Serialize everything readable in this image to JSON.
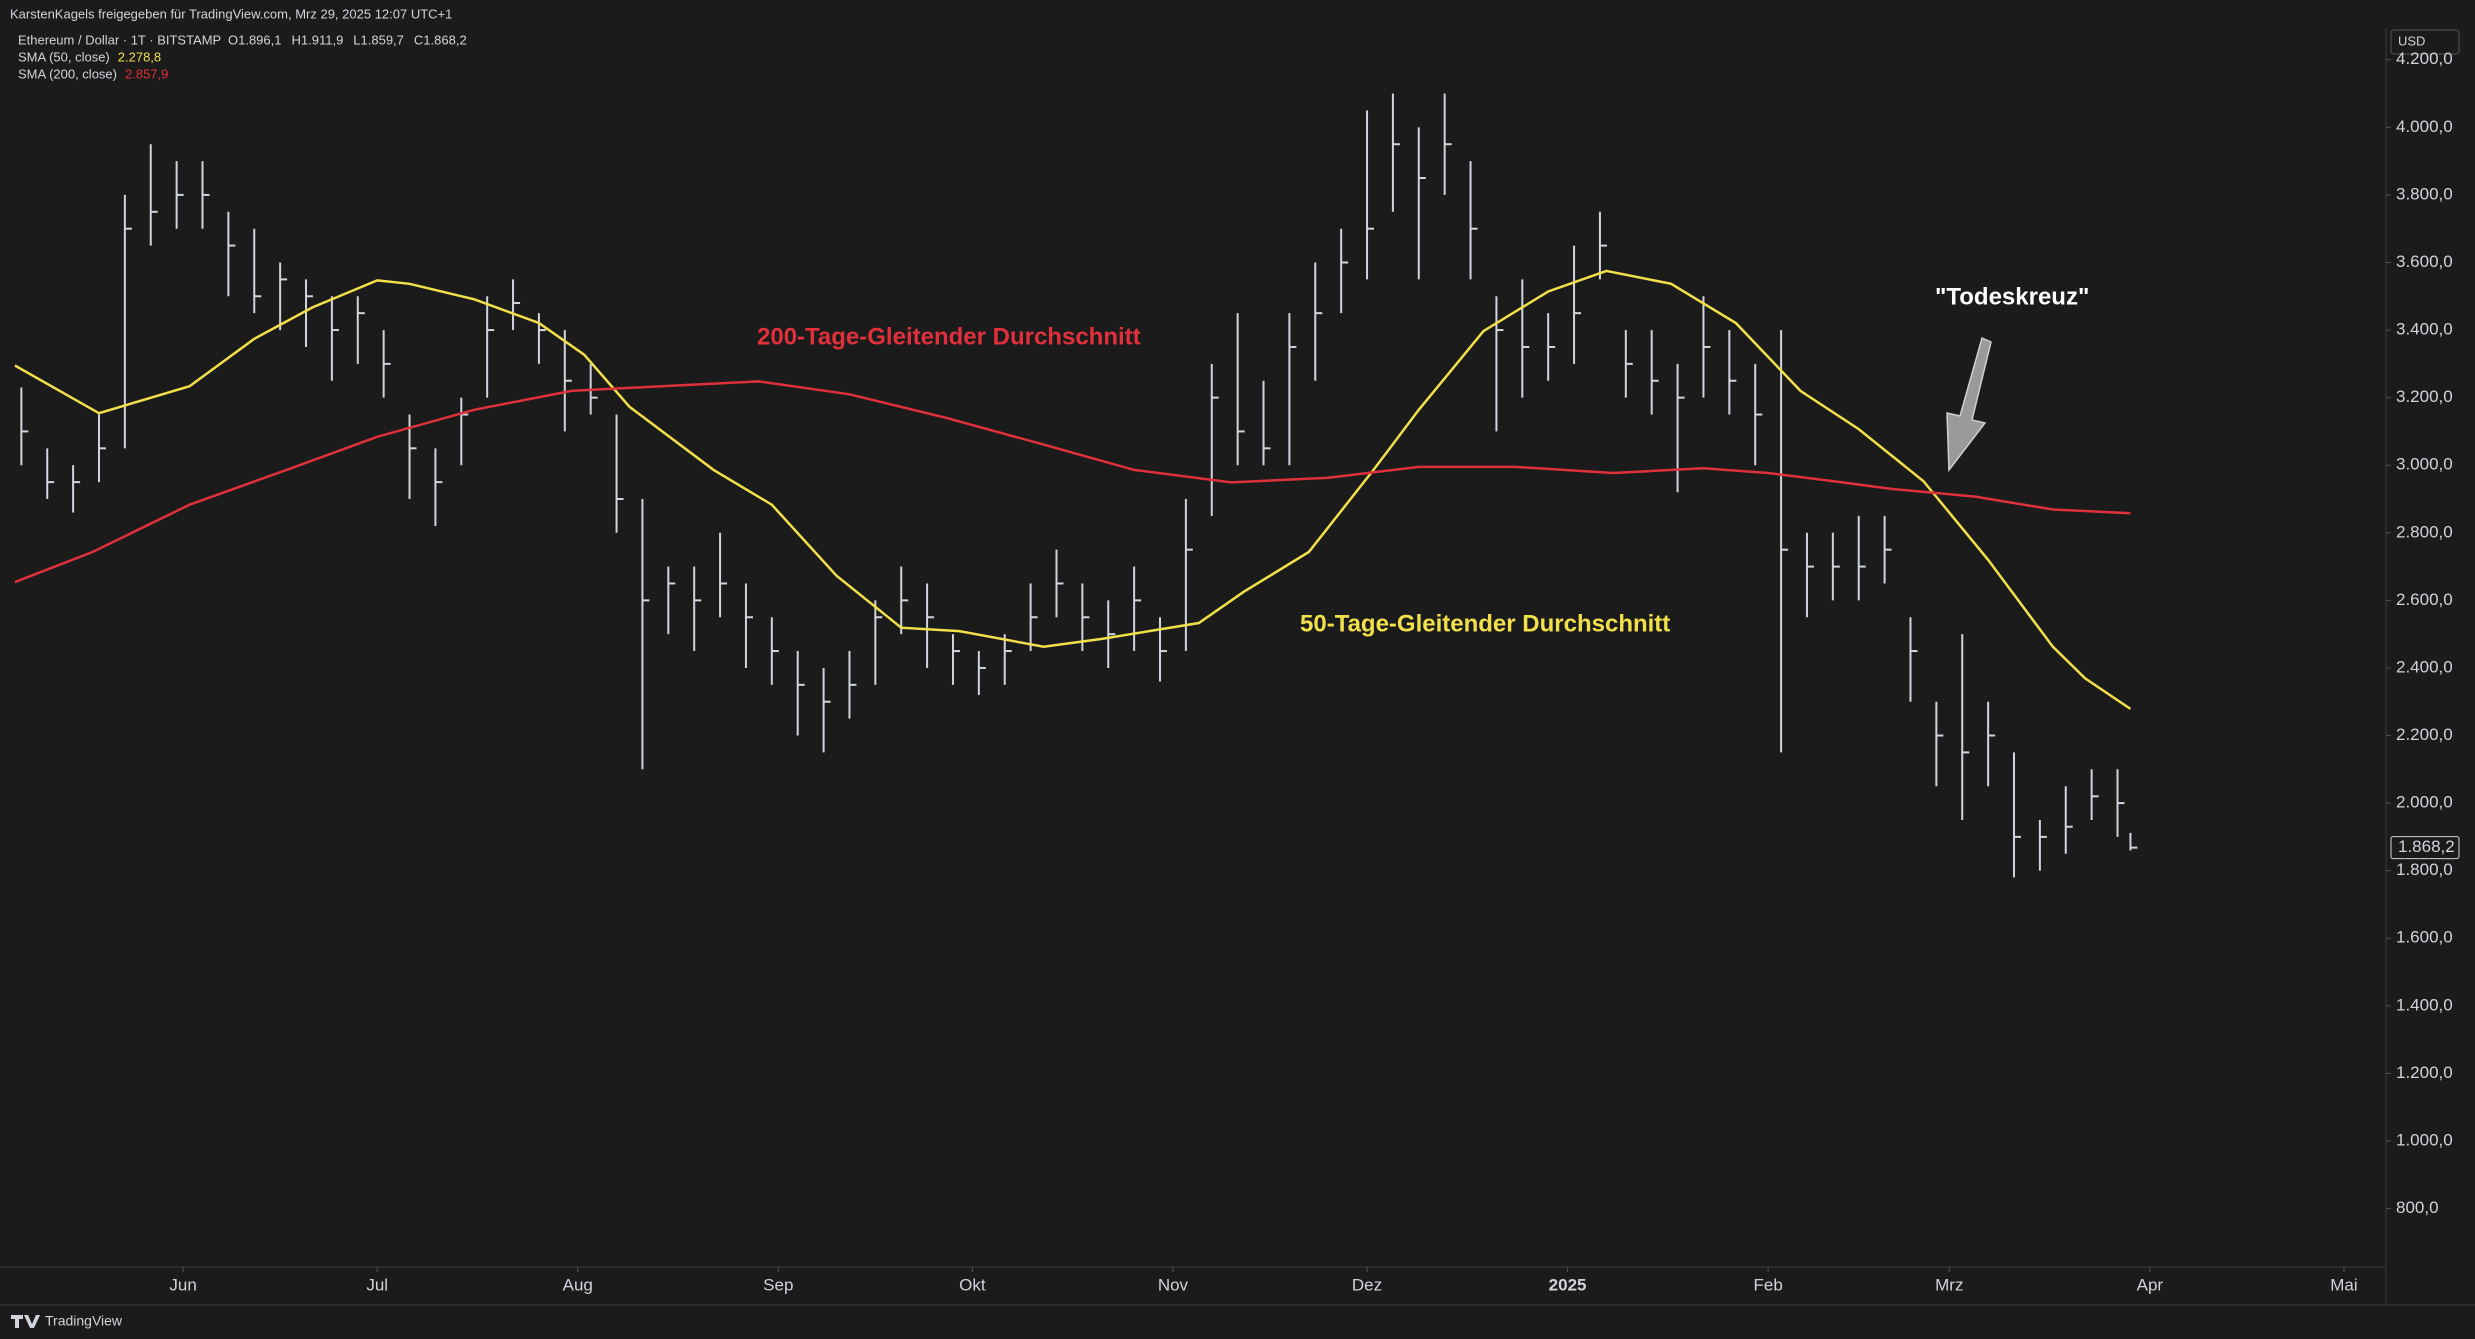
{
  "chart_data": {
    "type": "ohlc",
    "header": "KarstenKagels freigegeben für TradingView.com, Mrz 29, 2025 12:07 UTC+1",
    "symbol": "Ethereum / Dollar · 1T · BITSTAMP",
    "ohlc_labels": [
      "O1.896,1",
      "H1.911,9",
      "L1.859,7",
      "C1.868,2"
    ],
    "currency": "USD",
    "last_price_label": "1.868,2",
    "brand": "TradingView",
    "price_color": "#d1d4dc",
    "x": [
      -25,
      -21,
      -17,
      -13,
      -9,
      -5,
      -1,
      3,
      7,
      11,
      15,
      19,
      23,
      27,
      31,
      35,
      39,
      43,
      47,
      51,
      55,
      59,
      63,
      67,
      71,
      75,
      79,
      83,
      87,
      91,
      95,
      99,
      103,
      107,
      111,
      115,
      119,
      123,
      127,
      131,
      135,
      139,
      143,
      147,
      151,
      155,
      159,
      163,
      167,
      171,
      175,
      179,
      183,
      187,
      191,
      195,
      199,
      203,
      207,
      211,
      215,
      219,
      223,
      227,
      231,
      235,
      239,
      243,
      247,
      251,
      255,
      259,
      263,
      267,
      271,
      275,
      279,
      283,
      287,
      291,
      295,
      299,
      301
    ],
    "high": [
      3230,
      3050,
      3000,
      3150,
      3800,
      3950,
      3900,
      3900,
      3750,
      3700,
      3600,
      3550,
      3500,
      3500,
      3400,
      3150,
      3050,
      3200,
      3500,
      3550,
      3450,
      3400,
      3300,
      3150,
      2900,
      2700,
      2700,
      2800,
      2650,
      2550,
      2450,
      2400,
      2450,
      2600,
      2700,
      2650,
      2500,
      2450,
      2500,
      2650,
      2750,
      2650,
      2600,
      2700,
      2550,
      2900,
      3300,
      3450,
      3250,
      3450,
      3600,
      3700,
      4050,
      4100,
      4000,
      4100,
      3900,
      3500,
      3550,
      3450,
      3650,
      3750,
      3400,
      3400,
      3300,
      3500,
      3400,
      3300,
      3400,
      2800,
      2800,
      2850,
      2850,
      2550,
      2300,
      2500,
      2300,
      2150,
      1950,
      2050,
      2100,
      2100,
      1911.9
    ],
    "low": [
      3000,
      2900,
      2860,
      2950,
      3050,
      3650,
      3700,
      3700,
      3500,
      3450,
      3400,
      3350,
      3250,
      3300,
      3200,
      2900,
      2820,
      3000,
      3200,
      3400,
      3300,
      3100,
      3150,
      2800,
      2100,
      2500,
      2450,
      2550,
      2400,
      2350,
      2200,
      2150,
      2250,
      2350,
      2500,
      2400,
      2350,
      2320,
      2350,
      2450,
      2550,
      2450,
      2400,
      2450,
      2360,
      2450,
      2850,
      3000,
      3000,
      3000,
      3250,
      3450,
      3550,
      3750,
      3550,
      3800,
      3550,
      3100,
      3200,
      3250,
      3300,
      3550,
      3200,
      3150,
      2920,
      3200,
      3150,
      3000,
      2150,
      2550,
      2600,
      2600,
      2650,
      2300,
      2050,
      1950,
      2050,
      1780,
      1800,
      1850,
      1950,
      1900,
      1859.7
    ],
    "close": [
      3100,
      2950,
      2950,
      3050,
      3700,
      3750,
      3800,
      3800,
      3650,
      3500,
      3550,
      3500,
      3400,
      3450,
      3300,
      3050,
      2950,
      3150,
      3400,
      3480,
      3400,
      3250,
      3200,
      2900,
      2600,
      2650,
      2600,
      2650,
      2550,
      2450,
      2350,
      2300,
      2350,
      2550,
      2600,
      2550,
      2450,
      2400,
      2450,
      2550,
      2650,
      2550,
      2500,
      2600,
      2450,
      2750,
      3200,
      3100,
      3050,
      3350,
      3450,
      3600,
      3700,
      3950,
      3850,
      3950,
      3700,
      3400,
      3350,
      3350,
      3450,
      3650,
      3300,
      3250,
      3200,
      3350,
      3250,
      3150,
      2750,
      2700,
      2700,
      2700,
      2750,
      2450,
      2200,
      2150,
      2200,
      1900,
      1900,
      1930,
      2020,
      2000,
      1868.2
    ],
    "series": [
      {
        "name": "SMA (50, close)",
        "color": "#f2e04a",
        "value_label": "2.278,8",
        "x": [
          -26,
          -13,
          1,
          11,
          20,
          30,
          35,
          45,
          55,
          62,
          69,
          82,
          91,
          101,
          111,
          120,
          133,
          142,
          157,
          164,
          174,
          184,
          191,
          201,
          211,
          220,
          230,
          240,
          250,
          259,
          269,
          279,
          289,
          294,
          301
        ],
        "values": [
          3295,
          3154,
          3234,
          3374,
          3467,
          3547,
          3537,
          3491,
          3421,
          3327,
          3173,
          2986,
          2883,
          2673,
          2519,
          2509,
          2463,
          2486,
          2533,
          2626,
          2743,
          2986,
          3164,
          3397,
          3514,
          3575,
          3537,
          3421,
          3220,
          3107,
          2953,
          2720,
          2463,
          2369,
          2278.8
        ]
      },
      {
        "name": "SMA (200, close)",
        "color": "#e0303b",
        "value_label": "2.857,9",
        "x": [
          -26,
          -14,
          1,
          16,
          30,
          45,
          60,
          74,
          89,
          103,
          118,
          133,
          147,
          162,
          177,
          191,
          206,
          221,
          235,
          245,
          255,
          264,
          277,
          289,
          301
        ],
        "values": [
          2654,
          2743,
          2883,
          2986,
          3084,
          3164,
          3220,
          3234,
          3248,
          3210,
          3140,
          3061,
          2986,
          2949,
          2963,
          2995,
          2995,
          2977,
          2991,
          2977,
          2953,
          2930,
          2907,
          2869,
          2857.9
        ]
      }
    ],
    "annotations": [
      {
        "text": "200-Tage-Gleitender Durchschnitt",
        "color": "#e0303b"
      },
      {
        "text": "50-Tage-Gleitender Durchschnitt",
        "color": "#f2e04a"
      },
      {
        "text": "\"Todeskreuz\"",
        "color": "#ffffff"
      }
    ],
    "xlim": [
      -26.6,
      340.5
    ],
    "xticks": [
      {
        "value": 0,
        "label": "Jun"
      },
      {
        "value": 30,
        "label": "Jul"
      },
      {
        "value": 61,
        "label": "Aug"
      },
      {
        "value": 92,
        "label": "Sep"
      },
      {
        "value": 122,
        "label": "Okt"
      },
      {
        "value": 153,
        "label": "Nov"
      },
      {
        "value": 183,
        "label": "Dez"
      },
      {
        "value": 214,
        "label": "2025"
      },
      {
        "value": 245,
        "label": "Feb"
      },
      {
        "value": 273,
        "label": "Mrz"
      },
      {
        "value": 304,
        "label": "Apr"
      },
      {
        "value": 334,
        "label": "Mai"
      }
    ],
    "ylim": [
      627,
      4294
    ],
    "yticks": [
      {
        "value": 800,
        "label": "800,0"
      },
      {
        "value": 1000,
        "label": "1.000,0"
      },
      {
        "value": 1200,
        "label": "1.200,0"
      },
      {
        "value": 1400,
        "label": "1.400,0"
      },
      {
        "value": 1600,
        "label": "1.600,0"
      },
      {
        "value": 1800,
        "label": "1.800,0"
      },
      {
        "value": 2000,
        "label": "2.000,0"
      },
      {
        "value": 2200,
        "label": "2.200,0"
      },
      {
        "value": 2400,
        "label": "2.400,0"
      },
      {
        "value": 2600,
        "label": "2.600,0"
      },
      {
        "value": 2800,
        "label": "2.800,0"
      },
      {
        "value": 3000,
        "label": "3.000,0"
      },
      {
        "value": 3200,
        "label": "3.200,0"
      },
      {
        "value": 3400,
        "label": "3.400,0"
      },
      {
        "value": 3600,
        "label": "3.600,0"
      },
      {
        "value": 3800,
        "label": "3.800,0"
      },
      {
        "value": 4000,
        "label": "4.000,0"
      },
      {
        "value": 4200,
        "label": "4.200,0"
      }
    ],
    "grid": false
  }
}
